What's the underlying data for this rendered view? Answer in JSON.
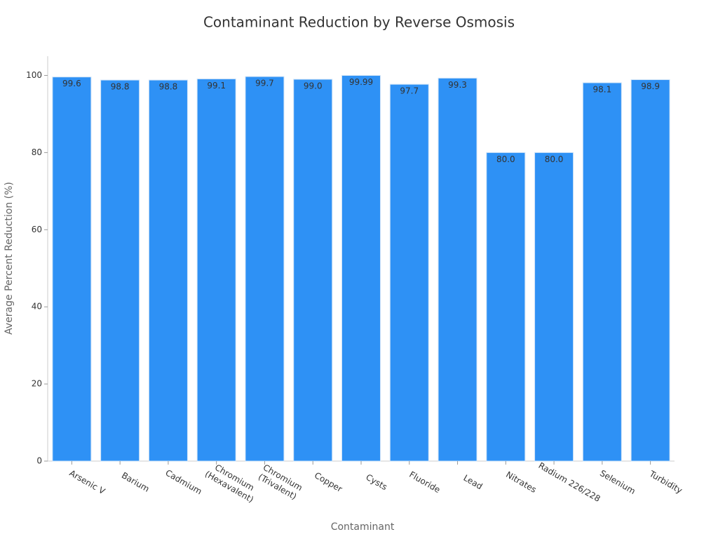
{
  "chart_data": {
    "type": "bar",
    "title": "Contaminant Reduction by Reverse Osmosis",
    "x_label": "Contaminant",
    "y_label": "Average Percent Reduction (%)",
    "categories": [
      "Arsenic V",
      "Barium",
      "Cadmium",
      "Chromium (Hexavalent)",
      "Chromium (Trivalent)",
      "Copper",
      "Cysts",
      "Fluoride",
      "Lead",
      "Nitrates",
      "Radium 226/228",
      "Selenium",
      "Turbidity"
    ],
    "values": [
      99.6,
      98.8,
      98.8,
      99.1,
      99.7,
      99.0,
      99.99,
      97.7,
      99.3,
      80.0,
      80.0,
      98.1,
      98.9
    ],
    "value_labels": [
      "99.6",
      "98.8",
      "98.8",
      "99.1",
      "99.7",
      "99.0",
      "99.99",
      "97.7",
      "99.3",
      "80.0",
      "80.0",
      "98.1",
      "98.9"
    ],
    "color": "#2e91f5",
    "ylim": [
      0,
      105
    ],
    "yticks": [
      0,
      20,
      40,
      60,
      80,
      100
    ],
    "grid": false
  }
}
